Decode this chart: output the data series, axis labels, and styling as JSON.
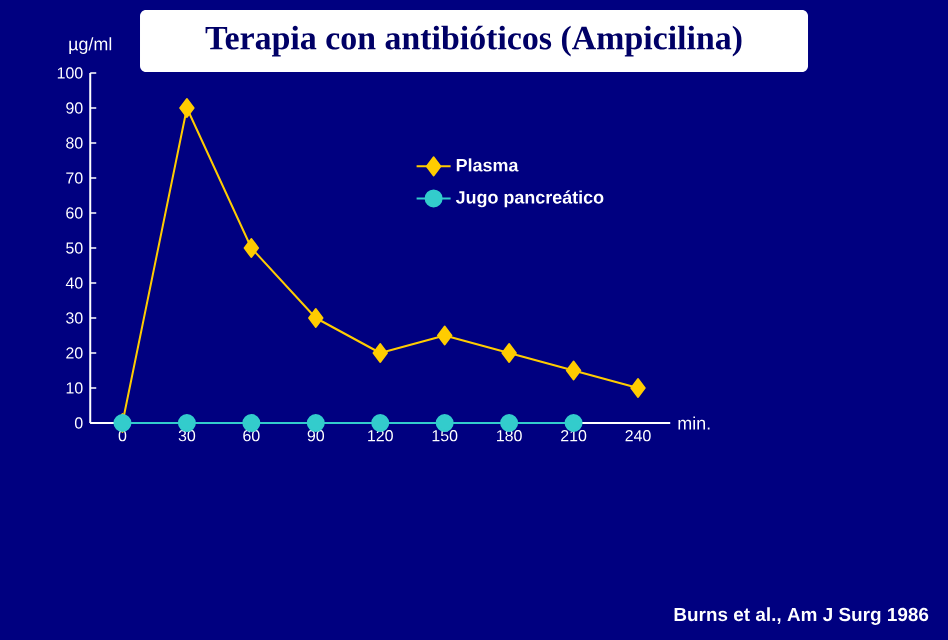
{
  "chart_data": {
    "type": "line",
    "title": "Terapia con antibióticos (Ampicilina)",
    "xlabel": "min.",
    "ylabel": "µg/ml",
    "x": [
      0,
      30,
      60,
      90,
      120,
      150,
      180,
      210,
      240
    ],
    "series": [
      {
        "name": "Plasma",
        "color": "#ffcc00",
        "marker": "diamond",
        "values": [
          0,
          90,
          50,
          30,
          20,
          25,
          20,
          15,
          10
        ]
      },
      {
        "name": "Jugo pancreático",
        "color": "#33cccc",
        "marker": "circle",
        "x": [
          0,
          30,
          60,
          90,
          120,
          150,
          180,
          210
        ],
        "values": [
          0,
          0,
          0,
          0,
          0,
          0,
          0,
          0
        ]
      }
    ],
    "xlim": [
      -15,
      255
    ],
    "xticks": [
      0,
      30,
      60,
      90,
      120,
      150,
      180,
      210,
      240
    ],
    "ylim": [
      0,
      100
    ],
    "yticks": [
      0,
      10,
      20,
      30,
      40,
      50,
      60,
      70,
      80,
      90,
      100
    ],
    "grid": false,
    "legend": "top right",
    "annotations": [
      "Burns et al., Am J Surg 1986"
    ]
  }
}
